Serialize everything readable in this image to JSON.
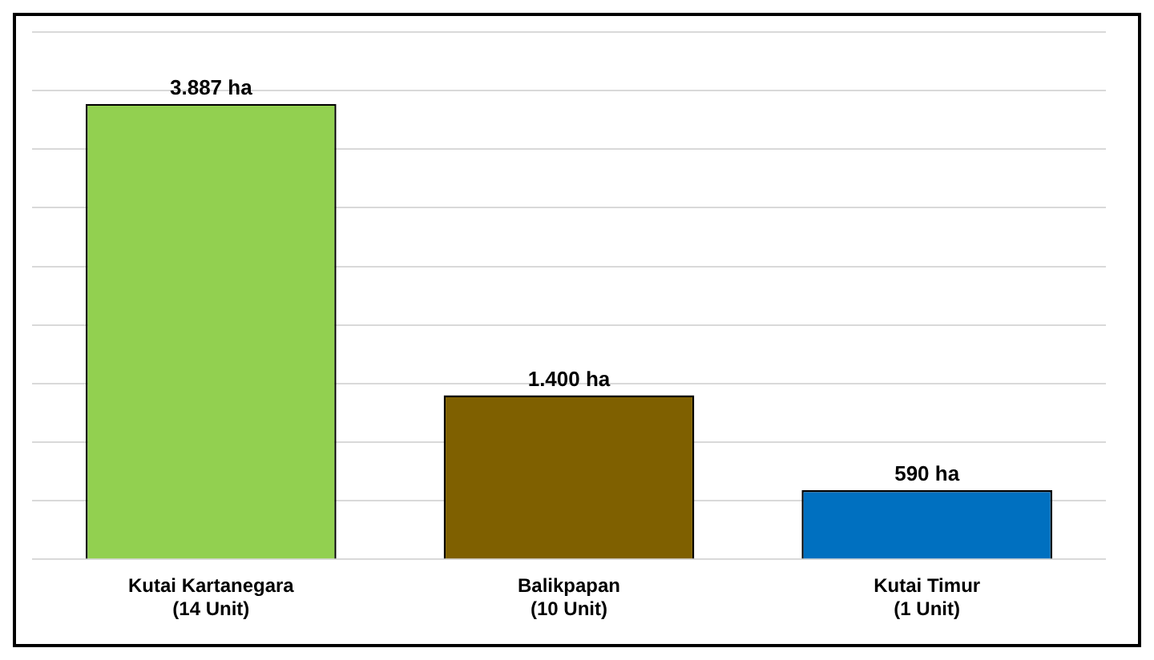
{
  "chart_data": {
    "type": "bar",
    "categories": [
      "Kutai Kartanegara\n(14 Unit)",
      "Balikpapan\n(10 Unit)",
      "Kutai Timur\n(1 Unit)"
    ],
    "values": [
      3887,
      1400,
      590
    ],
    "colors": [
      "#92d050",
      "#7f6000",
      "#0070c0"
    ],
    "value_labels": [
      "3.887 ha",
      "1.400 ha",
      "590 ha"
    ],
    "ylim": [
      0,
      4500
    ],
    "yticks": [
      {
        "value": 0,
        "label": null
      },
      {
        "value": 500,
        "label": null
      },
      {
        "value": 1000,
        "label": null
      },
      {
        "value": 1500,
        "label": null
      },
      {
        "value": 2000,
        "label": null
      },
      {
        "value": 2500,
        "label": null
      },
      {
        "value": 3000,
        "label": null
      },
      {
        "value": 3500,
        "label": null
      },
      {
        "value": 4000,
        "label": null
      },
      {
        "value": 4500,
        "label": null
      }
    ],
    "tick_labels": "x",
    "grid": "y"
  }
}
